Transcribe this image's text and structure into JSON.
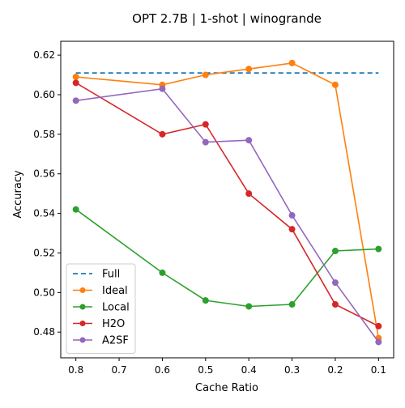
{
  "chart_data": {
    "type": "line",
    "title": "OPT 2.7B | 1-shot | winogrande",
    "xlabel": "Cache Ratio",
    "ylabel": "Accuracy",
    "x": [
      0.8,
      0.6,
      0.5,
      0.4,
      0.3,
      0.2,
      0.1
    ],
    "x_tick_labels": [
      "0.8",
      "0.7",
      "0.6",
      "0.5",
      "0.4",
      "0.3",
      "0.2",
      "0.1"
    ],
    "x_axis_inverted": true,
    "ylim": [
      0.467,
      0.627
    ],
    "y_ticks": [
      0.48,
      0.5,
      0.52,
      0.54,
      0.56,
      0.58,
      0.6,
      0.62
    ],
    "y_tick_labels": [
      "0.48",
      "0.50",
      "0.52",
      "0.54",
      "0.56",
      "0.58",
      "0.60",
      "0.62"
    ],
    "grid": false,
    "legend_position": "lower-left",
    "series": [
      {
        "name": "Full",
        "style": "dashed",
        "color": "#1f77b4",
        "values": [
          0.611,
          0.611,
          0.611,
          0.611,
          0.611,
          0.611,
          0.611
        ]
      },
      {
        "name": "Ideal",
        "style": "solid-marker",
        "color": "#ff7f0e",
        "values": [
          0.609,
          0.605,
          0.61,
          0.613,
          0.616,
          0.605,
          0.477
        ]
      },
      {
        "name": "Local",
        "style": "solid-marker",
        "color": "#2ca02c",
        "values": [
          0.542,
          0.51,
          0.496,
          0.493,
          0.494,
          0.521,
          0.522
        ]
      },
      {
        "name": "H2O",
        "style": "solid-marker",
        "color": "#d62728",
        "values": [
          0.606,
          0.58,
          0.585,
          0.55,
          0.532,
          0.494,
          0.483
        ]
      },
      {
        "name": "A2SF",
        "style": "solid-marker",
        "color": "#9467bd",
        "values": [
          0.597,
          0.603,
          0.576,
          0.577,
          0.539,
          0.505,
          0.475
        ]
      }
    ]
  }
}
